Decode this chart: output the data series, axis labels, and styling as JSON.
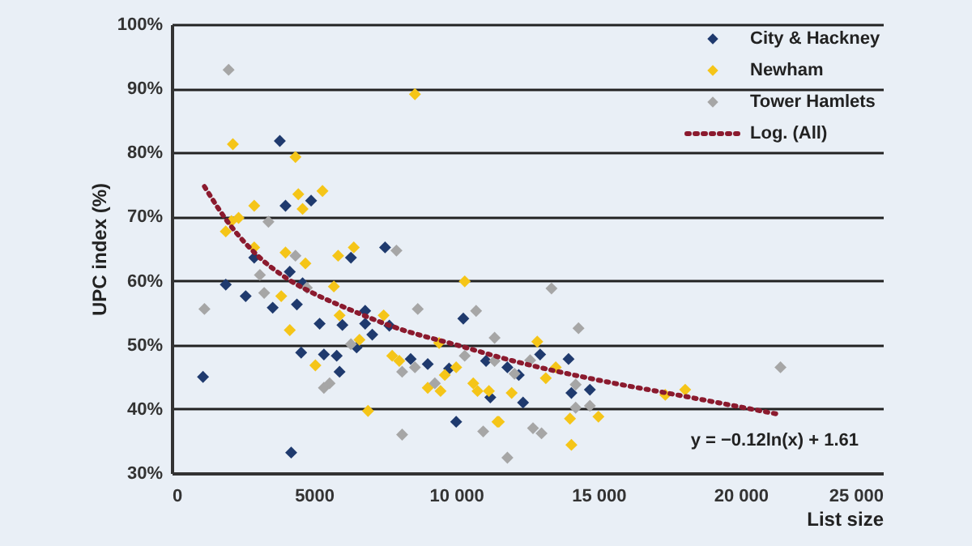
{
  "chart_data": {
    "type": "scatter",
    "xlabel": "List size",
    "ylabel": "UPC index (%)",
    "xlim": [
      0,
      25000
    ],
    "ylim": [
      30,
      100
    ],
    "xticks": [
      0,
      {
        "value": 5000,
        "label": "5000"
      },
      {
        "value": 10000,
        "label": "10 000"
      },
      {
        "value": 15000,
        "label": "15 000"
      },
      {
        "value": 20000,
        "label": "20 000"
      },
      {
        "value": 25000,
        "label": "25 000"
      }
    ],
    "yticks": [
      {
        "value": 30,
        "label": "30%"
      },
      {
        "value": 40,
        "label": "40%"
      },
      {
        "value": 50,
        "label": "50%"
      },
      {
        "value": 60,
        "label": "60%"
      },
      {
        "value": 70,
        "label": "70%"
      },
      {
        "value": 80,
        "label": "80%"
      },
      {
        "value": 90,
        "label": "90%"
      },
      {
        "value": 100,
        "label": "100%"
      }
    ],
    "grid": "y",
    "legend": "top right",
    "annotations": [
      "y = −0.12ln(x) + 1.61"
    ],
    "series": [
      {
        "name": "City & Hackney",
        "color": "#1f3a6e",
        "marker": "diamond",
        "x": [
          1100,
          1900,
          2600,
          2900,
          3800,
          4000,
          4900,
          4150,
          4600,
          6300,
          7500,
          3550,
          4400,
          5200,
          4550,
          5350,
          5800,
          5900,
          4200,
          6000,
          6800,
          6800,
          7050,
          7650,
          6500,
          8400,
          9000,
          10250,
          10000,
          9750,
          11800,
          11200,
          11050,
          12200,
          12950,
          13950,
          12350,
          14050,
          14700
        ],
        "values": [
          45.0,
          59.4,
          57.6,
          63.6,
          81.8,
          71.7,
          72.5,
          61.4,
          59.6,
          63.6,
          65.2,
          55.8,
          56.3,
          53.3,
          48.8,
          48.5,
          48.3,
          45.8,
          33.2,
          53.1,
          55.3,
          53.3,
          51.6,
          53.0,
          49.6,
          47.8,
          47.0,
          54.1,
          38.0,
          46.3,
          46.5,
          41.8,
          47.5,
          45.3,
          48.5,
          47.8,
          41.0,
          42.5,
          43.0
        ]
      },
      {
        "name": "Newham",
        "color": "#f5c518",
        "marker": "diamond",
        "x": [
          2150,
          4350,
          8550,
          4450,
          5300,
          4600,
          2900,
          2350,
          2100,
          1900,
          2900,
          4000,
          4700,
          5850,
          6400,
          5700,
          10300,
          3850,
          4150,
          5050,
          5900,
          6600,
          6900,
          7450,
          7750,
          8000,
          9000,
          9450,
          9400,
          9600,
          10000,
          10600,
          10750,
          11150,
          11450,
          11950,
          12850,
          13500,
          11500,
          13150,
          14000,
          15000,
          14050,
          17350,
          18050
        ],
        "values": [
          81.3,
          79.3,
          89.1,
          73.5,
          74.0,
          71.2,
          71.7,
          69.8,
          69.3,
          67.7,
          65.2,
          64.4,
          62.7,
          63.9,
          65.2,
          59.1,
          59.9,
          57.6,
          52.3,
          46.8,
          54.6,
          50.8,
          39.7,
          54.6,
          48.3,
          47.5,
          43.3,
          42.8,
          50.3,
          45.3,
          46.5,
          44.0,
          42.8,
          42.8,
          38.0,
          42.5,
          50.5,
          46.5,
          38.0,
          44.8,
          38.5,
          38.8,
          34.4,
          42.2,
          43.0
        ]
      },
      {
        "name": "Tower Hamlets",
        "color": "#a6a6a6",
        "marker": "diamond",
        "x": [
          2000,
          3400,
          4350,
          7900,
          3100,
          4750,
          1150,
          3250,
          6300,
          5350,
          5550,
          8100,
          8550,
          8650,
          8100,
          9250,
          10300,
          10700,
          10950,
          11350,
          11350,
          11800,
          12050,
          13350,
          14300,
          12600,
          12700,
          13000,
          14200,
          14700,
          14200,
          21400
        ],
        "values": [
          92.9,
          69.2,
          63.9,
          64.7,
          60.9,
          58.9,
          55.6,
          58.1,
          50.1,
          43.3,
          44.0,
          45.8,
          46.5,
          55.6,
          36.0,
          44.0,
          48.3,
          55.3,
          36.5,
          51.1,
          47.5,
          32.4,
          45.5,
          58.8,
          52.6,
          47.6,
          37.0,
          36.2,
          40.2,
          40.5,
          43.8,
          46.5
        ]
      },
      {
        "name": "Log. (All)",
        "type": "line",
        "line_style": "dotted",
        "color": "#8b1a2e",
        "x": [
          1150,
          2000,
          3000,
          4000,
          5000,
          6000,
          8000,
          10000,
          12000,
          15000,
          18000,
          21300
        ],
        "values": [
          74.7,
          69.0,
          64.0,
          60.5,
          58.0,
          56.0,
          52.5,
          50.0,
          47.5,
          44.5,
          42.0,
          39.2
        ]
      }
    ]
  }
}
